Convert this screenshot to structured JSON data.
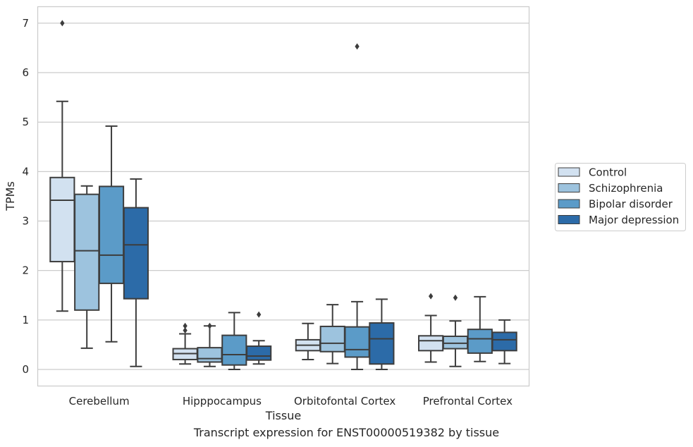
{
  "chart_data": {
    "type": "box",
    "title": "",
    "caption": "Transcript expression for ENST00000519382 by tissue",
    "xlabel": "Tissue",
    "ylabel": "TPMs",
    "ylim": [
      -0.33,
      7.35
    ],
    "yticks": [
      0,
      1,
      2,
      3,
      4,
      5,
      6,
      7
    ],
    "grid": "horizontal",
    "legend_position": "right",
    "categories": [
      "Cerebellum",
      "Hipppocampus",
      "Orbitofontal Cortex",
      "Prefrontal Cortex"
    ],
    "series": [
      {
        "name": "Control",
        "color": "#d2e1f0",
        "boxes": [
          {
            "whislo": 1.18,
            "q1": 2.18,
            "med": 3.42,
            "q3": 3.88,
            "whishi": 5.42,
            "fliers": [
              7.0
            ]
          },
          {
            "whislo": 0.11,
            "q1": 0.2,
            "med": 0.32,
            "q3": 0.42,
            "whishi": 0.72,
            "fliers": [
              0.79,
              0.88
            ]
          },
          {
            "whislo": 0.2,
            "q1": 0.38,
            "med": 0.49,
            "q3": 0.6,
            "whishi": 0.93,
            "fliers": []
          },
          {
            "whislo": 0.15,
            "q1": 0.38,
            "med": 0.58,
            "q3": 0.68,
            "whishi": 1.09,
            "fliers": [
              1.48
            ]
          }
        ]
      },
      {
        "name": "Schizophrenia",
        "color": "#9dc3de",
        "boxes": [
          {
            "whislo": 0.43,
            "q1": 1.2,
            "med": 2.4,
            "q3": 3.54,
            "whishi": 3.71,
            "fliers": []
          },
          {
            "whislo": 0.06,
            "q1": 0.15,
            "med": 0.22,
            "q3": 0.44,
            "whishi": 0.88,
            "fliers": [
              0.88
            ]
          },
          {
            "whislo": 0.12,
            "q1": 0.36,
            "med": 0.53,
            "q3": 0.87,
            "whishi": 1.31,
            "fliers": []
          },
          {
            "whislo": 0.06,
            "q1": 0.42,
            "med": 0.53,
            "q3": 0.67,
            "whishi": 0.98,
            "fliers": [
              1.45
            ]
          }
        ]
      },
      {
        "name": "Bipolar disorder",
        "color": "#5b9bc8",
        "boxes": [
          {
            "whislo": 0.56,
            "q1": 1.74,
            "med": 2.31,
            "q3": 3.7,
            "whishi": 4.92,
            "fliers": []
          },
          {
            "whislo": 0.0,
            "q1": 0.09,
            "med": 0.3,
            "q3": 0.69,
            "whishi": 1.15,
            "fliers": []
          },
          {
            "whislo": 0.0,
            "q1": 0.25,
            "med": 0.4,
            "q3": 0.86,
            "whishi": 1.37,
            "fliers": [
              6.53
            ]
          },
          {
            "whislo": 0.16,
            "q1": 0.33,
            "med": 0.62,
            "q3": 0.81,
            "whishi": 1.47,
            "fliers": []
          }
        ]
      },
      {
        "name": "Major depression",
        "color": "#2c6ba8",
        "boxes": [
          {
            "whislo": 0.06,
            "q1": 1.43,
            "med": 2.52,
            "q3": 3.27,
            "whishi": 3.85,
            "fliers": []
          },
          {
            "whislo": 0.11,
            "q1": 0.19,
            "med": 0.27,
            "q3": 0.47,
            "whishi": 0.58,
            "fliers": [
              1.11
            ]
          },
          {
            "whislo": 0.0,
            "q1": 0.11,
            "med": 0.62,
            "q3": 0.94,
            "whishi": 1.42,
            "fliers": []
          },
          {
            "whislo": 0.12,
            "q1": 0.38,
            "med": 0.6,
            "q3": 0.75,
            "whishi": 1.0,
            "fliers": []
          }
        ]
      }
    ]
  }
}
